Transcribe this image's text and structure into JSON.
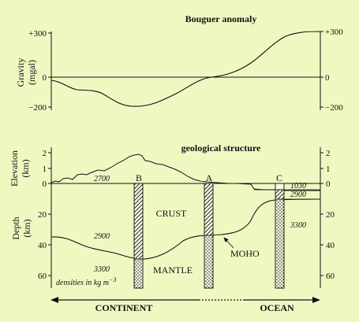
{
  "gravity_panel": {
    "title": "Bouguer anomaly",
    "ylabel": "Gravity",
    "yunit": "(mgal)",
    "ticks_left": [
      "+300",
      "0",
      "−200"
    ],
    "ticks_right": [
      "+300",
      "0",
      "−200"
    ]
  },
  "structure_panel": {
    "title": "geological structure",
    "elev_label": "Elevation",
    "elev_unit": "(km)",
    "elev_ticks_left": [
      "2",
      "1",
      "0"
    ],
    "elev_ticks_right": [
      "2",
      "1",
      "0"
    ],
    "depth_label": "Depth",
    "depth_unit": "(km)",
    "depth_ticks_left": [
      "20",
      "40",
      "60"
    ],
    "depth_ticks_right": [
      "20",
      "40",
      "60"
    ],
    "columns": [
      "B",
      "A",
      "C"
    ],
    "crust_label": "CRUST",
    "mantle_label": "MANTLE",
    "moho_label": "MOHO",
    "densities": {
      "upper_crust": "2700",
      "water": "1030",
      "ocean_crust": "2900",
      "crust_left": "2900",
      "mantle_right": "3300",
      "mantle_left": "3300"
    },
    "density_note_prefix": "densities in kg m",
    "density_note_exp": "−3"
  },
  "footer": {
    "continent_label": "CONTINENT",
    "ocean_label": "OCEAN"
  },
  "colors": {
    "background": "#eef9c2",
    "ink": "#111111"
  }
}
